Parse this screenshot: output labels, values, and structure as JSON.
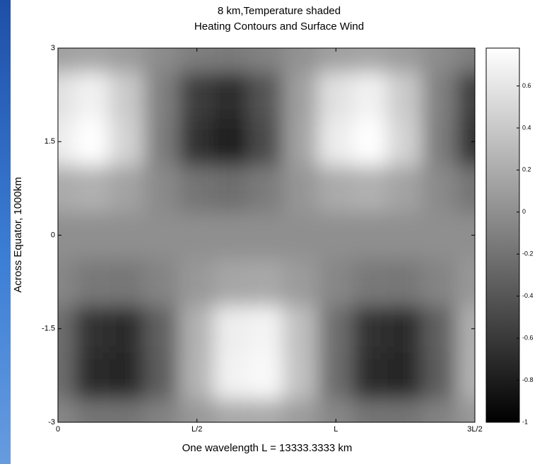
{
  "chart_data": {
    "type": "contour",
    "title": "8 km,Temperature shaded",
    "subtitle": "Heating Contours and Surface Wind",
    "x_label": "One wavelength L = 13333.3333 km",
    "y_label": "Across Equator, 1000km",
    "x": [
      0,
      0.125,
      0.25,
      0.375,
      0.5,
      0.625,
      0.75,
      0.875,
      1,
      1.125,
      1.25,
      1.375,
      1.5
    ],
    "y": [
      -3,
      -2.25,
      -1.5,
      -0.75,
      0,
      0.75,
      1.5,
      2.25,
      3
    ],
    "z": [
      [
        -0.06,
        -0.18,
        -0.19,
        -0.09,
        0.06,
        0.18,
        0.19,
        0.09,
        -0.06,
        -0.18,
        -0.19,
        -0.09,
        0.06
      ],
      [
        -0.24,
        -0.69,
        -0.74,
        -0.35,
        0.24,
        0.69,
        0.74,
        0.35,
        -0.24,
        -0.69,
        -0.74,
        -0.35,
        0.24
      ],
      [
        -0.23,
        -0.66,
        -0.7,
        -0.33,
        0.23,
        0.66,
        0.7,
        0.33,
        -0.23,
        -0.66,
        -0.7,
        -0.33,
        0.23
      ],
      [
        -0.06,
        -0.16,
        -0.17,
        -0.08,
        0.06,
        0.16,
        0.17,
        0.08,
        -0.06,
        -0.16,
        -0.17,
        -0.08,
        0.06
      ],
      [
        0,
        0,
        0,
        0,
        0,
        0,
        0,
        0,
        0,
        0,
        0,
        0,
        0
      ],
      [
        0.19,
        0.23,
        0.14,
        -0.04,
        -0.19,
        -0.23,
        -0.14,
        0.04,
        0.19,
        0.23,
        0.14,
        -0.04,
        -0.19
      ],
      [
        0.65,
        0.79,
        0.47,
        -0.13,
        -0.65,
        -0.79,
        -0.47,
        0.13,
        0.65,
        0.79,
        0.47,
        -0.13,
        -0.65
      ],
      [
        0.57,
        0.69,
        0.41,
        -0.11,
        -0.57,
        -0.69,
        -0.41,
        0.11,
        0.57,
        0.69,
        0.41,
        -0.11,
        -0.57
      ],
      [
        0.12,
        0.15,
        0.09,
        -0.02,
        -0.12,
        -0.15,
        -0.09,
        0.02,
        0.12,
        0.15,
        0.09,
        -0.02,
        -0.12
      ]
    ],
    "xlim": [
      0,
      1.5
    ],
    "xticks": [
      0,
      {
        "value": 0.5,
        "label": "L/2"
      },
      {
        "value": 1,
        "label": "L"
      },
      {
        "value": 1.5,
        "label": "3L/2"
      }
    ],
    "ylim": [
      -3,
      3
    ],
    "yticks": [
      -3,
      -1.5,
      0,
      1.5,
      3
    ],
    "colorbar": {
      "lim": [
        -1,
        0.78
      ],
      "ticks": [
        -1,
        -0.8,
        -0.6,
        -0.4,
        -0.2,
        0,
        0.2,
        0.4,
        0.6
      ]
    },
    "colormap": [
      "#000000",
      "#ffffff"
    ]
  }
}
